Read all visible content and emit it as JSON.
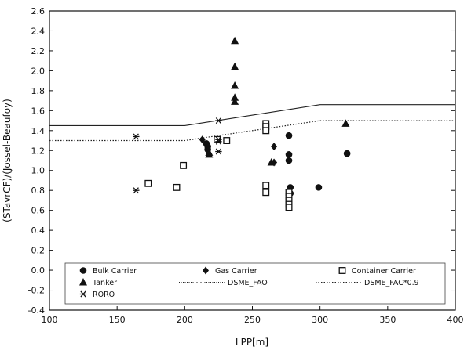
{
  "chart_data": {
    "type": "scatter",
    "title": "",
    "xlabel": "LPP[m]",
    "ylabel": "(STavrCF)/(Jossel-Beaufoy)",
    "xlim": [
      100,
      400
    ],
    "ylim": [
      -0.4,
      2.6
    ],
    "xticks": [
      100,
      150,
      200,
      250,
      300,
      350,
      400
    ],
    "yticks": [
      -0.4,
      -0.2,
      0.0,
      0.2,
      0.4,
      0.6,
      0.8,
      1.0,
      1.2,
      1.4,
      1.6,
      1.8,
      2.0,
      2.2,
      2.4,
      2.6
    ],
    "ytick_labels": [
      "-0.4",
      "-0.2",
      "0.0",
      "0.2",
      "0.4",
      "0.6",
      "0.8",
      "1.0",
      "1.2",
      "1.4",
      "1.6",
      "1.8",
      "2.0",
      "2.2",
      "2.4",
      "2.6"
    ],
    "grid": false,
    "legend_position": "bottom",
    "series": [
      {
        "name": "Bulk Carrier",
        "marker": "circle",
        "points": [
          [
            216,
            1.27
          ],
          [
            217,
            1.24
          ],
          [
            217,
            1.21
          ],
          [
            277,
            1.35
          ],
          [
            277,
            1.16
          ],
          [
            277,
            1.1
          ],
          [
            278,
            0.83
          ],
          [
            278,
            0.77
          ],
          [
            299,
            0.83
          ],
          [
            320,
            1.17
          ]
        ]
      },
      {
        "name": "Gas Carrier",
        "marker": "diamond",
        "points": [
          [
            213,
            1.31
          ],
          [
            266,
            1.24
          ],
          [
            266,
            1.08
          ]
        ]
      },
      {
        "name": "Container Carrier",
        "marker": "square",
        "points": [
          [
            173,
            0.87
          ],
          [
            194,
            0.83
          ],
          [
            199,
            1.05
          ],
          [
            224,
            1.31
          ],
          [
            231,
            1.3
          ],
          [
            260,
            1.47
          ],
          [
            260,
            1.44
          ],
          [
            260,
            1.4
          ],
          [
            260,
            0.85
          ],
          [
            260,
            0.78
          ],
          [
            277,
            0.78
          ],
          [
            277,
            0.74
          ],
          [
            277,
            0.7
          ],
          [
            277,
            0.66
          ],
          [
            277,
            0.63
          ]
        ]
      },
      {
        "name": "Tanker",
        "marker": "triangle",
        "points": [
          [
            218,
            1.18
          ],
          [
            218,
            1.16
          ],
          [
            237,
            2.3
          ],
          [
            237,
            2.04
          ],
          [
            237,
            1.85
          ],
          [
            237,
            1.73
          ],
          [
            237,
            1.69
          ],
          [
            264,
            1.08
          ],
          [
            319,
            1.47
          ]
        ]
      },
      {
        "name": "RORO",
        "marker": "asterisk",
        "points": [
          [
            164,
            1.34
          ],
          [
            164,
            0.8
          ],
          [
            225,
            1.5
          ],
          [
            225,
            1.31
          ],
          [
            225,
            1.29
          ],
          [
            225,
            1.19
          ]
        ]
      },
      {
        "name": "DSME_FAO",
        "line": "solid",
        "points": [
          [
            100,
            1.45
          ],
          [
            200,
            1.45
          ],
          [
            300,
            1.66
          ],
          [
            400,
            1.66
          ]
        ]
      },
      {
        "name": "DSME_FAC*0.9",
        "line": "dotted",
        "points": [
          [
            100,
            1.3
          ],
          [
            200,
            1.3
          ],
          [
            300,
            1.5
          ],
          [
            400,
            1.5
          ]
        ]
      }
    ]
  },
  "legend": {
    "items": [
      {
        "label": "Bulk Carrier",
        "marker": "circle"
      },
      {
        "label": "Gas Carrier",
        "marker": "diamond"
      },
      {
        "label": "Container Carrier",
        "marker": "square"
      },
      {
        "label": "Tanker",
        "marker": "triangle"
      },
      {
        "label": "DSME_FAO",
        "line": "solid"
      },
      {
        "label": "DSME_FAC*0.9",
        "line": "dotted"
      },
      {
        "label": "RORO",
        "marker": "asterisk"
      }
    ]
  }
}
